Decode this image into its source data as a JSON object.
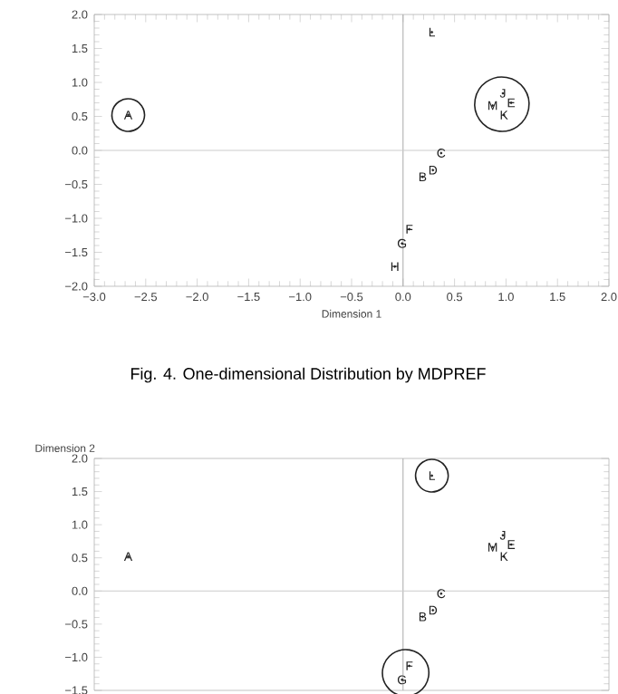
{
  "chart_data": [
    {
      "type": "scatter",
      "xlabel": "Dimension 1",
      "annotations": [
        "Fig. 4. One-dimensional Distribution by MDPREF"
      ],
      "grid": false,
      "color": "#222222",
      "xlim": [
        -3,
        2
      ],
      "xticks": [
        {
          "value": -3,
          "label": "−3.0"
        },
        {
          "value": -2.5,
          "label": "−2.5"
        },
        {
          "value": -2,
          "label": "−2.0"
        },
        {
          "value": -1.5,
          "label": "−1.5"
        },
        {
          "value": -1,
          "label": "−1.0"
        },
        {
          "value": -0.5,
          "label": "−0.5"
        },
        {
          "value": 0,
          "label": "0.0"
        },
        {
          "value": 0.5,
          "label": "0.5"
        },
        {
          "value": 1,
          "label": "1.0"
        },
        {
          "value": 1.5,
          "label": "1.5"
        },
        {
          "value": 2,
          "label": "2.0"
        }
      ],
      "ylim": [
        -2,
        2
      ],
      "yticks": [
        {
          "value": -2,
          "label": "−2.0"
        },
        {
          "value": -1.5,
          "label": "−1.5"
        },
        {
          "value": -1,
          "label": "−1.0"
        },
        {
          "value": -0.5,
          "label": "−0.5"
        },
        {
          "value": 0,
          "label": "0.0"
        },
        {
          "value": 0.5,
          "label": "0.5"
        },
        {
          "value": 1,
          "label": "1.0"
        },
        {
          "value": 1.5,
          "label": "1.5"
        },
        {
          "value": 2,
          "label": "2.0"
        }
      ],
      "ref_lines": [
        {
          "axis": "x",
          "value": 0,
          "color": "#aaaaaa"
        },
        {
          "axis": "y",
          "value": 0,
          "color": "#cccccc"
        }
      ],
      "x": [
        -2.67,
        0.28,
        0.97,
        1.05,
        0.87,
        0.98,
        0.37,
        0.29,
        0.19,
        0.06,
        -0.01,
        -0.08
      ],
      "values": [
        0.52,
        1.74,
        0.84,
        0.7,
        0.66,
        0.52,
        -0.04,
        -0.29,
        -0.39,
        -1.16,
        -1.37,
        -1.71
      ],
      "value_labels": [
        "A",
        "L",
        "J",
        "E",
        "M",
        "K",
        "C",
        "D",
        "B",
        "F",
        "G",
        "H"
      ]
    },
    {
      "type": "scatter",
      "ylabel": "Dimension 2",
      "grid": false,
      "color": "#222222",
      "tick_labels": "y",
      "xlim": [
        -3,
        2
      ],
      "ylim": [
        -1.5,
        2
      ],
      "yticks": [
        {
          "value": -1.5,
          "label": "−1.5"
        },
        {
          "value": -1,
          "label": "−1.0"
        },
        {
          "value": -0.5,
          "label": "−0.5"
        },
        {
          "value": 0,
          "label": "0.0"
        },
        {
          "value": 0.5,
          "label": "0.5"
        },
        {
          "value": 1,
          "label": "1.0"
        },
        {
          "value": 1.5,
          "label": "1.5"
        },
        {
          "value": 2,
          "label": "2.0"
        }
      ],
      "ref_lines": [
        {
          "axis": "x",
          "value": 0,
          "color": "#aaaaaa"
        },
        {
          "axis": "y",
          "value": 0,
          "color": "#cccccc"
        }
      ],
      "x": [
        -2.67,
        0.28,
        0.97,
        1.05,
        0.87,
        0.98,
        0.37,
        0.29,
        0.19,
        0.06,
        -0.01
      ],
      "values": [
        0.52,
        1.74,
        0.84,
        0.7,
        0.66,
        0.52,
        -0.04,
        -0.29,
        -0.39,
        -1.13,
        -1.34
      ],
      "value_labels": [
        "A",
        "L",
        "J",
        "E",
        "M",
        "K",
        "C",
        "D",
        "B",
        "F",
        "G"
      ]
    }
  ]
}
